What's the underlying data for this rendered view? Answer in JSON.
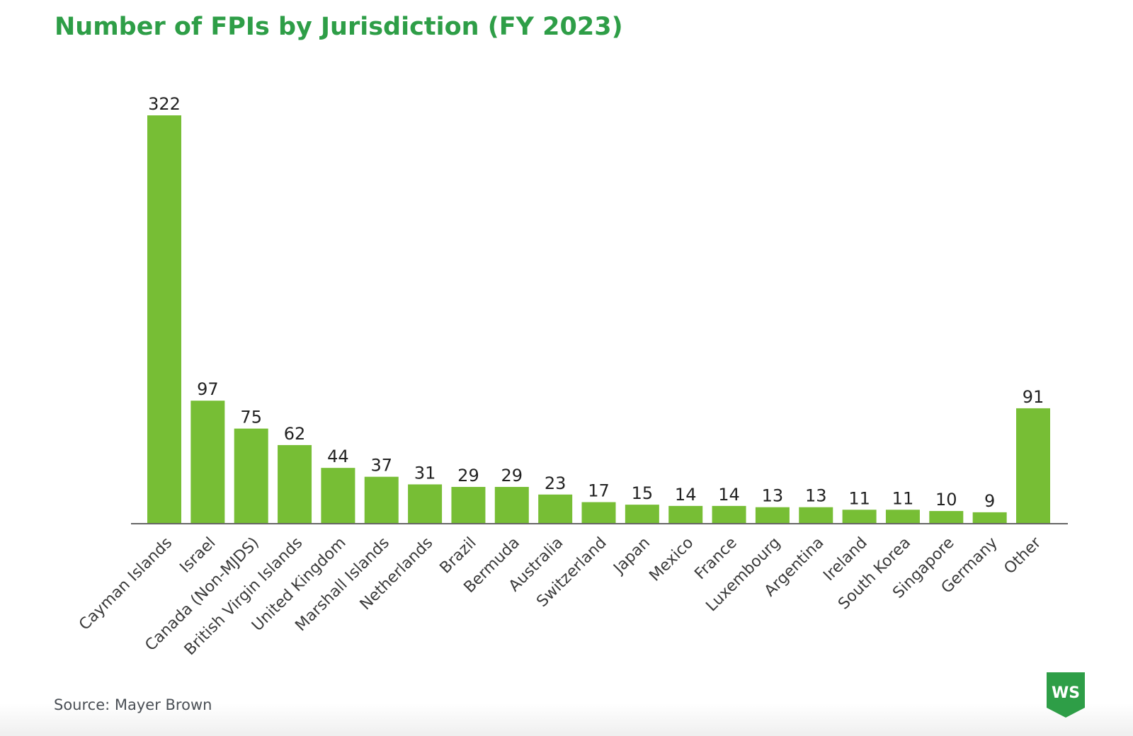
{
  "title": "Number of FPIs by Jurisdiction (FY 2023)",
  "source": "Source: Mayer Brown",
  "logo": {
    "text": "WS",
    "icon": "ws-shield-logo"
  },
  "colors": {
    "title": "#2e9e47",
    "bar": "#77be35",
    "axis": "#666666",
    "logo": "#2e9e47"
  },
  "chart_data": {
    "type": "bar",
    "title": "Number of FPIs by Jurisdiction (FY 2023)",
    "xlabel": "",
    "ylabel": "",
    "grid": false,
    "legend": "none",
    "ylim": [
      0,
      322
    ],
    "categories": [
      "Cayman Islands",
      "Israel",
      "Canada (Non-MJDS)",
      "British Virgin Islands",
      "United Kingdom",
      "Marshall Islands",
      "Netherlands",
      "Brazil",
      "Bermuda",
      "Australia",
      "Switzerland",
      "Japan",
      "Mexico",
      "France",
      "Luxembourg",
      "Argentina",
      "Ireland",
      "South Korea",
      "Singapore",
      "Germany",
      "Other"
    ],
    "values": [
      322,
      97,
      75,
      62,
      44,
      37,
      31,
      29,
      29,
      23,
      17,
      15,
      14,
      14,
      13,
      13,
      11,
      11,
      10,
      9,
      91
    ]
  }
}
